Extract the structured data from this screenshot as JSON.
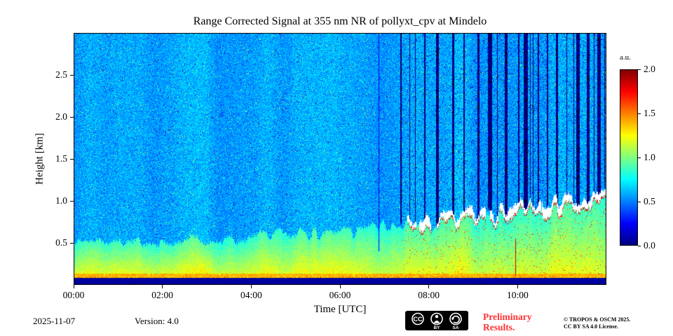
{
  "footer": {
    "date": "2025-11-07",
    "version": "Version: 4.0",
    "preliminary": {
      "line1": "Preliminary",
      "line2": "Results.",
      "color": "#ff3131"
    },
    "license": {
      "line1": "© TROPOS & OSCM 2025.",
      "line2": "CC BY SA 4.0 License."
    },
    "cc_badge": {
      "text_by": "BY",
      "text_sa": "SA",
      "icons": [
        "cc-icon",
        "person-icon",
        "share-alike-icon"
      ]
    }
  },
  "chart_data": {
    "type": "heatmap",
    "title": "Range Corrected Signal at 355 nm NR of pollyxt_cpv at Mindelo",
    "xlabel": "Time [UTC]",
    "ylabel": "Height [km]",
    "x_ticks": [
      "00:00",
      "02:00",
      "04:00",
      "06:00",
      "08:00",
      "10:00"
    ],
    "x_tick_hours": [
      0,
      2,
      4,
      6,
      8,
      10
    ],
    "x_range_hours": [
      0,
      12
    ],
    "y_ticks": [
      "0.5",
      "1.0",
      "1.5",
      "2.0",
      "2.5"
    ],
    "y_tick_values": [
      0.5,
      1.0,
      1.5,
      2.0,
      2.5
    ],
    "y_range_km": [
      0,
      3
    ],
    "grid": false,
    "legend_position": "none",
    "colorbar": {
      "label": "a.u.",
      "ticks": [
        "0.0",
        "0.5",
        "1.0",
        "1.5",
        "2.0"
      ],
      "tick_values": [
        0,
        0.5,
        1.0,
        1.5,
        2.0
      ],
      "range": [
        0,
        2
      ],
      "colormap": "jet",
      "over_color": "#ffffff"
    },
    "features": {
      "description": "Lidar quicklook heatmap: noisy teal free troposphere (~0.55 a.u.); green convective boundary layer rising from ~0.5 km at 00:00 UTC to ~1.0 km by 11:00 UTC; dark low-signal overlap band below ~0.08 km topped by a bright yellow near-surface band (~1.4 a.u.); from ~07:20 UTC broken clouds at 0.65-1.1 km produce saturated white cloud bases with red fringes and dark attenuated (blue/black) columns above them.",
      "seed": 1337,
      "background_mean": 0.58,
      "background_noise": 0.14,
      "surface_dark_value": 0.06,
      "surface_dark_top_km": 0.085,
      "near_surface_bright_value": 1.4,
      "near_surface_bright_top_km": 0.13,
      "boundary_layer": {
        "height_km_start": 0.52,
        "height_km_end": 1.0,
        "value_mean": 1.05,
        "spike_amplitude_km": 0.12
      },
      "clouds": {
        "start_hour": 7.35,
        "end_hour": 11.97,
        "base_km_min": 0.65,
        "base_km_max": 1.1,
        "attenuated_value": 0.03,
        "saturated_value": 2.3
      },
      "thin_stripe_hours": [
        6.87
      ],
      "red_line_hour": 9.95
    }
  }
}
